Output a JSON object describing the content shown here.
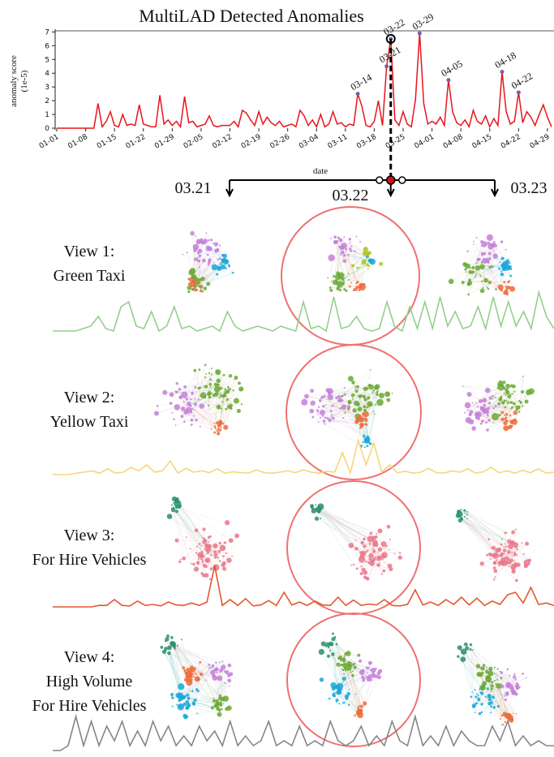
{
  "chart_data": [
    {
      "type": "line",
      "title": "MultiLAD Detected Anomalies",
      "xlabel": "date",
      "ylabel": [
        "anomaly score",
        "(1e-5)"
      ],
      "color": "#e8141c",
      "marker_color": "#7a5fa0",
      "selected": "03-22",
      "categories": [
        "01-01",
        null,
        null,
        null,
        null,
        null,
        null,
        "01-08",
        null,
        null,
        null,
        null,
        null,
        null,
        "01-15",
        null,
        null,
        null,
        null,
        null,
        null,
        "01-22",
        null,
        null,
        null,
        null,
        null,
        null,
        "01-29",
        null,
        null,
        null,
        null,
        null,
        null,
        "02-05",
        null,
        null,
        null,
        null,
        null,
        null,
        "02-12",
        null,
        null,
        null,
        null,
        null,
        null,
        "02-19",
        null,
        null,
        null,
        null,
        null,
        null,
        "02-26",
        null,
        null,
        null,
        null,
        null,
        null,
        "03-04",
        null,
        null,
        null,
        null,
        null,
        null,
        "03-11",
        null,
        null,
        null,
        null,
        null,
        null,
        "03-18",
        null,
        null,
        null,
        null,
        null,
        null,
        "03-25",
        null,
        null,
        null,
        null,
        null,
        null,
        "04-01",
        null,
        null,
        null,
        null,
        null,
        null,
        "04-08",
        null,
        null,
        null,
        null,
        null,
        null,
        "04-15",
        null,
        null,
        null,
        null,
        null,
        null,
        "04-22",
        null,
        null,
        null,
        null,
        null,
        null,
        "04-29",
        null
      ],
      "values": [
        0,
        0,
        0,
        0,
        0,
        0,
        0,
        0,
        0,
        0,
        1.8,
        0.1,
        0.5,
        1.2,
        0.2,
        0.1,
        1.0,
        0.2,
        0.3,
        0.2,
        1.7,
        0.3,
        0.2,
        0.1,
        0.1,
        2.4,
        0.3,
        0.6,
        0.2,
        0.5,
        0.1,
        2.3,
        0.4,
        0.5,
        0.1,
        0.2,
        0.3,
        0.9,
        0.2,
        0.1,
        0.2,
        0.2,
        0.2,
        0.5,
        0.1,
        1.3,
        1.1,
        0.6,
        0.2,
        1.2,
        0.3,
        0.8,
        0.4,
        0.2,
        0.5,
        0.1,
        0.2,
        0.3,
        0.1,
        1.3,
        0.9,
        0.2,
        0.6,
        0.1,
        1.0,
        0.1,
        0.3,
        1.2,
        0.3,
        0.4,
        0.1,
        0.3,
        0.2,
        2.5,
        1.6,
        0.2,
        0.1,
        0.5,
        2.0,
        0.2,
        4.5,
        6.5,
        0.6,
        0.2,
        1.2,
        0.3,
        0.1,
        2.1,
        6.9,
        1.8,
        0.3,
        0.5,
        0.3,
        0.8,
        0.2,
        3.5,
        1.2,
        0.4,
        0.2,
        0.6,
        0.1,
        1.3,
        0.5,
        0.3,
        0.9,
        0.1,
        0.7,
        0.2,
        4.1,
        1.2,
        0.3,
        0.5,
        2.6,
        0.4,
        1.2,
        0.8,
        0.2,
        1.0,
        1.7,
        0.8,
        0.1
      ],
      "point_labels": [
        null,
        null,
        null,
        null,
        null,
        null,
        null,
        null,
        null,
        null,
        null,
        null,
        null,
        null,
        null,
        null,
        null,
        null,
        null,
        null,
        null,
        null,
        null,
        null,
        null,
        null,
        null,
        null,
        null,
        null,
        null,
        null,
        null,
        null,
        null,
        null,
        null,
        null,
        null,
        null,
        null,
        null,
        null,
        null,
        null,
        null,
        null,
        null,
        null,
        null,
        null,
        null,
        null,
        null,
        null,
        null,
        null,
        null,
        null,
        null,
        null,
        null,
        null,
        null,
        null,
        null,
        null,
        null,
        null,
        null,
        null,
        null,
        null,
        "03-14",
        null,
        null,
        null,
        null,
        null,
        null,
        "03-21",
        "03-22",
        null,
        null,
        null,
        null,
        null,
        null,
        "03-29",
        null,
        null,
        null,
        null,
        null,
        null,
        "04-05",
        null,
        null,
        null,
        null,
        null,
        null,
        null,
        null,
        null,
        null,
        null,
        null,
        "04-18",
        null,
        null,
        null,
        "04-22",
        null,
        null,
        null,
        null,
        null,
        null,
        null,
        null
      ],
      "ylim": [
        0,
        7.2
      ],
      "yticks": [
        0,
        1,
        2,
        3,
        4,
        5,
        6,
        7
      ]
    },
    {
      "type": "sparkline",
      "color": "#93cf8c",
      "ylim": [
        0,
        10
      ],
      "values": [
        0,
        0,
        0,
        0,
        0.5,
        1,
        3,
        0.5,
        0,
        5,
        6,
        1,
        0.5,
        4,
        0,
        1,
        5,
        0.5,
        1,
        0,
        0.5,
        1,
        0,
        4,
        1,
        0,
        0.5,
        1,
        0.5,
        0,
        1,
        0.5,
        0,
        6,
        0.5,
        1,
        0,
        7,
        0.5,
        1,
        3,
        0.5,
        0,
        0.5,
        6,
        1,
        0,
        5,
        0.5,
        6,
        0.5,
        7,
        1,
        4,
        0.5,
        1,
        5,
        0.5,
        7,
        1,
        6,
        1,
        4,
        0.5,
        8,
        3,
        0.5
      ]
    },
    {
      "type": "sparkline",
      "color": "#f7d57c",
      "ylim": [
        0,
        10
      ],
      "values": [
        0,
        0,
        0,
        0.3,
        0.5,
        0.8,
        0.3,
        1.2,
        0.3,
        0.5,
        1.5,
        0.8,
        2,
        0.5,
        0.8,
        2.8,
        0.3,
        1.3,
        0.5,
        0.8,
        0.4,
        1.2,
        0.3,
        0.6,
        0.4,
        0.3,
        1.0,
        0.4,
        0.3,
        0.5,
        0.8,
        0.4,
        1,
        0.5,
        0.3,
        0.7,
        0.5,
        4.5,
        0.3,
        7,
        2,
        6.5,
        0.5,
        2,
        0.4,
        0.7,
        0.3,
        0.5,
        1.3,
        0.4,
        0.3,
        0.8,
        0.5,
        1.2,
        0.3,
        0.6,
        1.5,
        0.4,
        0.8,
        0.3,
        0.9,
        0.4,
        1.2,
        0.3,
        0.5
      ]
    },
    {
      "type": "sparkline",
      "color": "#e4572e",
      "ylim": [
        0,
        10
      ],
      "values": [
        0,
        0,
        0,
        0,
        0,
        0,
        0.3,
        0.3,
        1.5,
        0.3,
        0.2,
        1.2,
        0.3,
        0.5,
        0.2,
        1.0,
        0.4,
        0.3,
        0.8,
        0.3,
        1.0,
        8.5,
        0.3,
        1.5,
        0.3,
        1.7,
        0.2,
        0.4,
        1.3,
        0.3,
        3,
        0.4,
        1.0,
        0.3,
        1.2,
        0.4,
        0.3,
        2,
        0.3,
        1.4,
        0.3,
        0.6,
        0.4,
        1.5,
        0.3,
        0.2,
        0.5,
        3.5,
        0.4,
        1.0,
        0.3,
        1.5,
        0.5,
        2.0,
        0.4,
        1.8,
        0.3,
        1.2,
        0.5,
        2.5,
        3.0,
        0.8,
        4.0,
        0.5,
        0.8,
        0.3
      ]
    },
    {
      "type": "sparkline",
      "color": "#858585",
      "ylim": [
        0,
        10
      ],
      "values": [
        0,
        0,
        1,
        7,
        1,
        6,
        1,
        5,
        2,
        6,
        1,
        4,
        1,
        6,
        2,
        5,
        1,
        3,
        1,
        5,
        2,
        4,
        1,
        6,
        1,
        3,
        1,
        2,
        6,
        1,
        2,
        1,
        5,
        1,
        2,
        1,
        6,
        2,
        1,
        2,
        5,
        1,
        3,
        1,
        6,
        2,
        1,
        7,
        1,
        3,
        1,
        5,
        1,
        4,
        2,
        1,
        1,
        5,
        2,
        6,
        1,
        3,
        1,
        2,
        1,
        1
      ]
    }
  ],
  "panel": {
    "dates": [
      "03.21",
      "03.22",
      "03.23"
    ],
    "views": [
      [
        "View 1:",
        "Green Taxi"
      ],
      [
        "View 2:",
        "Yellow Taxi"
      ],
      [
        "View 3:",
        "For Hire Vehicles"
      ],
      [
        "View 4:",
        "High Volume",
        "For Hire Vehicles"
      ]
    ]
  }
}
